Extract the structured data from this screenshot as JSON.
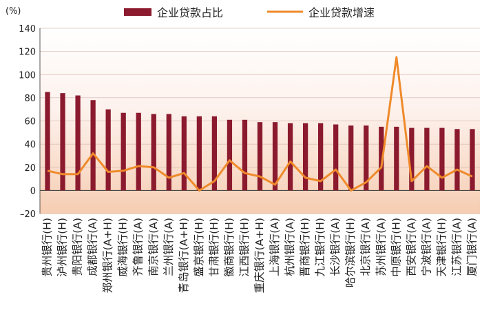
{
  "chart_data": {
    "type": "bar+line",
    "ylabel": "(%)",
    "ylim": [
      -20,
      140
    ],
    "yticks": [
      -20,
      0,
      20,
      40,
      60,
      80,
      100,
      120,
      140
    ],
    "ytick_labels": [
      "–20",
      "0",
      "20",
      "40",
      "60",
      "80",
      "100",
      "120",
      "140"
    ],
    "legend_position": "top",
    "categories": [
      "贵州银行(H)",
      "泸州银行(H)",
      "贵阳银行(A)",
      "成都银行(A)",
      "郑州银行(A+H)",
      "威海银行(H)",
      "齐鲁银行(A)",
      "南京银行(A)",
      "兰州银行(A)",
      "青岛银行(A+H)",
      "盛京银行(H)",
      "甘肃银行(H)",
      "徽商银行(H)",
      "江西银行(H)",
      "重庆银行(A+H)",
      "上海银行(A)",
      "杭州银行(A)",
      "晋商银行(H)",
      "九江银行(H)",
      "长沙银行(A)",
      "哈尔滨银行(H)",
      "北京银行(A)",
      "苏州银行(A)",
      "中原银行(H)",
      "西安银行(A)",
      "宁波银行(A)",
      "天津银行(H)",
      "江苏银行(A)",
      "厦门银行(A)"
    ],
    "series": [
      {
        "name": "企业贷款占比",
        "kind": "bar",
        "color": "#8b1a2e",
        "values": [
          85,
          84,
          82,
          78,
          70,
          67,
          67,
          66,
          66,
          64,
          64,
          64,
          61,
          61,
          59,
          59,
          58,
          58,
          58,
          57,
          56,
          56,
          55,
          55,
          54,
          54,
          54,
          53,
          53
        ]
      },
      {
        "name": "企业贷款增速",
        "kind": "line",
        "color": "#ef8a2a",
        "values": [
          17,
          14,
          14,
          32,
          16,
          17,
          21,
          20,
          11,
          15,
          0,
          8,
          26,
          15,
          12,
          5,
          25,
          11,
          8,
          18,
          0,
          7,
          20,
          115,
          8,
          21,
          11,
          18,
          12
        ]
      }
    ]
  }
}
